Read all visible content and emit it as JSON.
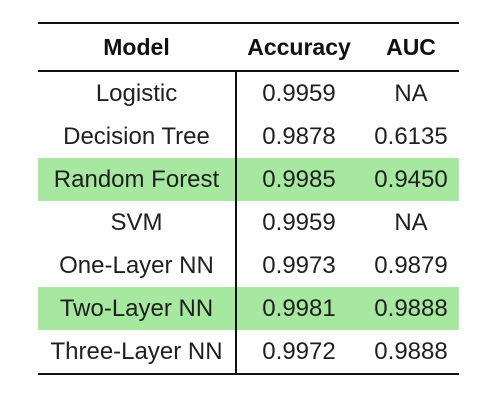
{
  "table": {
    "headers": [
      "Model",
      "Accuracy",
      "AUC"
    ],
    "rows": [
      {
        "model": "Logistic",
        "accuracy": "0.9959",
        "auc": "NA",
        "highlighted": false
      },
      {
        "model": "Decision Tree",
        "accuracy": "0.9878",
        "auc": "0.6135",
        "highlighted": false
      },
      {
        "model": "Random Forest",
        "accuracy": "0.9985",
        "auc": "0.9450",
        "highlighted": true
      },
      {
        "model": "SVM",
        "accuracy": "0.9959",
        "auc": "NA",
        "highlighted": false
      },
      {
        "model": "One-Layer NN",
        "accuracy": "0.9973",
        "auc": "0.9879",
        "highlighted": false
      },
      {
        "model": "Two-Layer NN",
        "accuracy": "0.9981",
        "auc": "0.9888",
        "highlighted": true
      },
      {
        "model": "Three-Layer NN",
        "accuracy": "0.9972",
        "auc": "0.9888",
        "highlighted": false
      }
    ],
    "highlight_color": "#a6e8a0"
  }
}
